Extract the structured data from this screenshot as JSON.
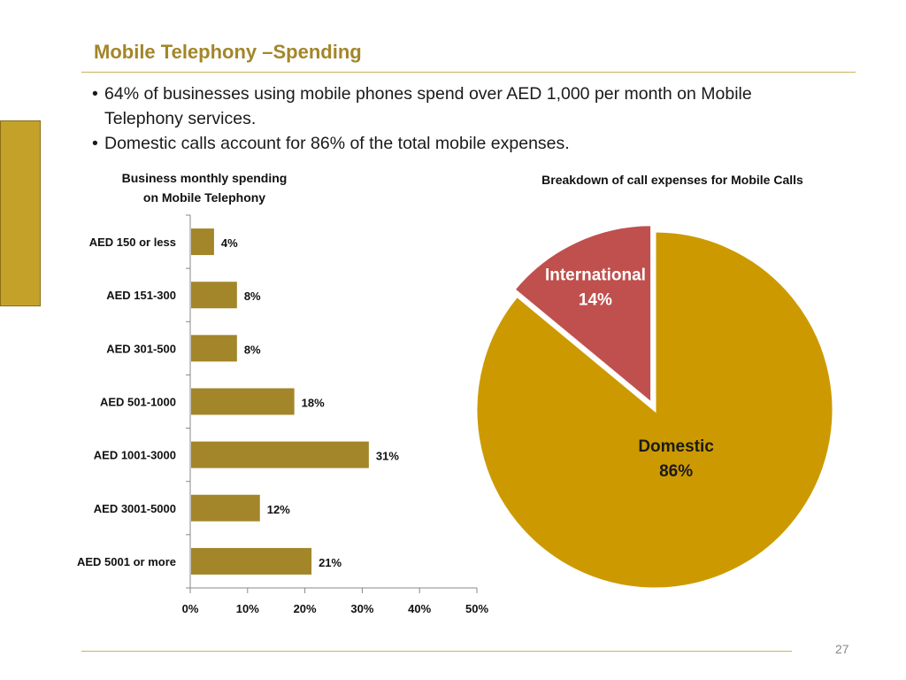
{
  "slide": {
    "title": "Mobile Telephony –Spending",
    "bullets": [
      "64% of businesses using mobile phones spend over AED 1,000  per month on Mobile Telephony services.",
      "Domestic calls account for 86% of the total mobile expenses."
    ],
    "page_number": "27"
  },
  "colors": {
    "bar": "#a3862a",
    "domestic": "#cc9a00",
    "international": "#c0504d",
    "tab": "#c4a22a"
  },
  "chart_data": [
    {
      "type": "bar",
      "orientation": "horizontal",
      "title": "Business monthly spending on Mobile Telephony",
      "title_lines": [
        "Business monthly spending",
        "on Mobile Telephony"
      ],
      "categories": [
        "AED 150 or less",
        "AED 151-300",
        "AED 301-500",
        "AED 501-1000",
        "AED 1001-3000",
        "AED 3001-5000",
        "AED 5001 or more"
      ],
      "values": [
        4,
        8,
        8,
        18,
        31,
        12,
        21
      ],
      "value_labels": [
        "4%",
        "8%",
        "8%",
        "18%",
        "31%",
        "12%",
        "21%"
      ],
      "xlim": [
        0,
        50
      ],
      "xticks": [
        0,
        10,
        20,
        30,
        40,
        50
      ],
      "xtick_labels": [
        "0%",
        "10%",
        "20%",
        "30%",
        "40%",
        "50%"
      ],
      "grid": false,
      "legend": "none"
    },
    {
      "type": "pie",
      "title": "Breakdown of call expenses for Mobile Calls",
      "slices": [
        {
          "label": "International",
          "value": 14,
          "value_label": "14%"
        },
        {
          "label": "Domestic",
          "value": 86,
          "value_label": "86%"
        }
      ],
      "exploded": "International",
      "legend": "none"
    }
  ]
}
